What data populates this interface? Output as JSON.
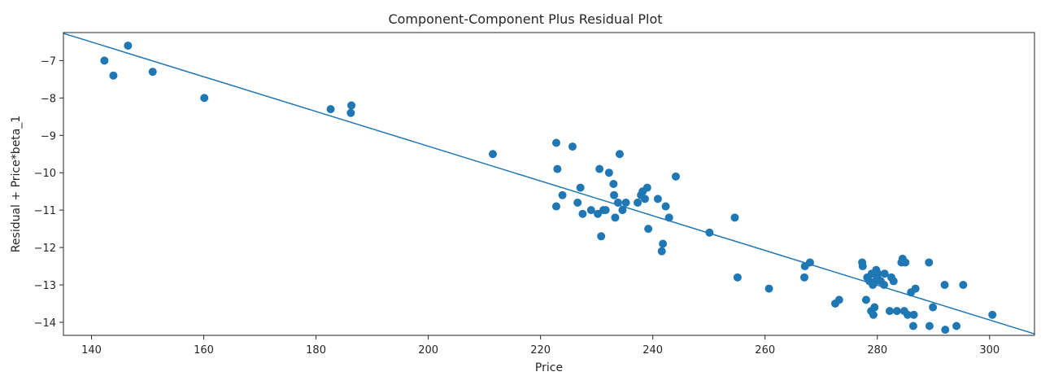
{
  "chart_data": {
    "type": "scatter",
    "title": "Component-Component Plus Residual Plot",
    "xlabel": "Price",
    "ylabel": "Residual + Price*beta_1",
    "xlim": [
      135.0,
      308.0
    ],
    "ylim": [
      -14.35,
      -6.25
    ],
    "xticks": [
      140,
      160,
      180,
      200,
      220,
      240,
      260,
      280,
      300
    ],
    "yticks": [
      -7,
      -8,
      -9,
      -10,
      -11,
      -12,
      -13,
      -14
    ],
    "grid": false,
    "legend": "none",
    "point_color": "#1f77b4",
    "line_color": "#1f77b4",
    "fit_line": {
      "x": [
        135.0,
        308.0
      ],
      "y": [
        -6.27,
        -14.31
      ]
    },
    "points": [
      {
        "x": 142.3,
        "y": -7.0
      },
      {
        "x": 143.9,
        "y": -7.4
      },
      {
        "x": 146.5,
        "y": -6.6
      },
      {
        "x": 150.9,
        "y": -7.3
      },
      {
        "x": 160.1,
        "y": -8.0
      },
      {
        "x": 182.6,
        "y": -8.3
      },
      {
        "x": 186.3,
        "y": -8.2
      },
      {
        "x": 186.2,
        "y": -8.4
      },
      {
        "x": 211.5,
        "y": -9.5
      },
      {
        "x": 222.8,
        "y": -9.2
      },
      {
        "x": 223.0,
        "y": -9.9
      },
      {
        "x": 222.8,
        "y": -10.9
      },
      {
        "x": 223.9,
        "y": -10.6
      },
      {
        "x": 225.7,
        "y": -9.3
      },
      {
        "x": 226.6,
        "y": -10.8
      },
      {
        "x": 227.1,
        "y": -10.4
      },
      {
        "x": 227.5,
        "y": -11.1
      },
      {
        "x": 229.0,
        "y": -11.0
      },
      {
        "x": 230.2,
        "y": -11.1
      },
      {
        "x": 230.5,
        "y": -9.9
      },
      {
        "x": 230.8,
        "y": -11.7
      },
      {
        "x": 231.2,
        "y": -11.0
      },
      {
        "x": 231.6,
        "y": -11.0
      },
      {
        "x": 232.2,
        "y": -10.0
      },
      {
        "x": 233.0,
        "y": -10.3
      },
      {
        "x": 233.1,
        "y": -10.6
      },
      {
        "x": 233.3,
        "y": -11.2
      },
      {
        "x": 233.8,
        "y": -10.8
      },
      {
        "x": 234.1,
        "y": -9.5
      },
      {
        "x": 234.6,
        "y": -11.0
      },
      {
        "x": 235.2,
        "y": -10.8
      },
      {
        "x": 237.3,
        "y": -10.8
      },
      {
        "x": 237.9,
        "y": -10.6
      },
      {
        "x": 238.2,
        "y": -10.5
      },
      {
        "x": 238.6,
        "y": -10.7
      },
      {
        "x": 239.0,
        "y": -10.4
      },
      {
        "x": 239.2,
        "y": -11.5
      },
      {
        "x": 240.9,
        "y": -10.7
      },
      {
        "x": 241.6,
        "y": -12.1
      },
      {
        "x": 241.8,
        "y": -11.9
      },
      {
        "x": 242.3,
        "y": -10.9
      },
      {
        "x": 242.9,
        "y": -11.2
      },
      {
        "x": 244.1,
        "y": -10.1
      },
      {
        "x": 250.1,
        "y": -11.6
      },
      {
        "x": 254.6,
        "y": -11.2
      },
      {
        "x": 255.1,
        "y": -12.8
      },
      {
        "x": 260.7,
        "y": -13.1
      },
      {
        "x": 267.0,
        "y": -12.8
      },
      {
        "x": 267.1,
        "y": -12.5
      },
      {
        "x": 268.0,
        "y": -12.4
      },
      {
        "x": 272.5,
        "y": -13.5
      },
      {
        "x": 273.2,
        "y": -13.4
      },
      {
        "x": 277.3,
        "y": -12.4
      },
      {
        "x": 277.4,
        "y": -12.5
      },
      {
        "x": 278.0,
        "y": -13.4
      },
      {
        "x": 278.2,
        "y": -12.8
      },
      {
        "x": 278.6,
        "y": -12.9
      },
      {
        "x": 278.9,
        "y": -13.7
      },
      {
        "x": 279.0,
        "y": -12.7
      },
      {
        "x": 279.2,
        "y": -13.0
      },
      {
        "x": 279.3,
        "y": -13.8
      },
      {
        "x": 279.5,
        "y": -13.6
      },
      {
        "x": 279.7,
        "y": -12.9
      },
      {
        "x": 279.8,
        "y": -12.6
      },
      {
        "x": 280.0,
        "y": -12.8
      },
      {
        "x": 280.1,
        "y": -12.7
      },
      {
        "x": 280.6,
        "y": -12.9
      },
      {
        "x": 281.2,
        "y": -13.0
      },
      {
        "x": 281.3,
        "y": -12.7
      },
      {
        "x": 282.2,
        "y": -13.7
      },
      {
        "x": 282.5,
        "y": -12.8
      },
      {
        "x": 282.9,
        "y": -12.9
      },
      {
        "x": 283.5,
        "y": -13.7
      },
      {
        "x": 284.3,
        "y": -12.4
      },
      {
        "x": 284.5,
        "y": -12.3
      },
      {
        "x": 284.8,
        "y": -13.7
      },
      {
        "x": 285.0,
        "y": -12.4
      },
      {
        "x": 285.4,
        "y": -13.8
      },
      {
        "x": 286.0,
        "y": -13.2
      },
      {
        "x": 286.4,
        "y": -14.1
      },
      {
        "x": 286.5,
        "y": -13.8
      },
      {
        "x": 286.8,
        "y": -13.1
      },
      {
        "x": 289.2,
        "y": -12.4
      },
      {
        "x": 289.3,
        "y": -14.1
      },
      {
        "x": 289.9,
        "y": -13.6
      },
      {
        "x": 292.0,
        "y": -13.0
      },
      {
        "x": 292.1,
        "y": -14.2
      },
      {
        "x": 294.1,
        "y": -14.1
      },
      {
        "x": 295.3,
        "y": -13.0
      },
      {
        "x": 300.5,
        "y": -13.8
      }
    ]
  }
}
